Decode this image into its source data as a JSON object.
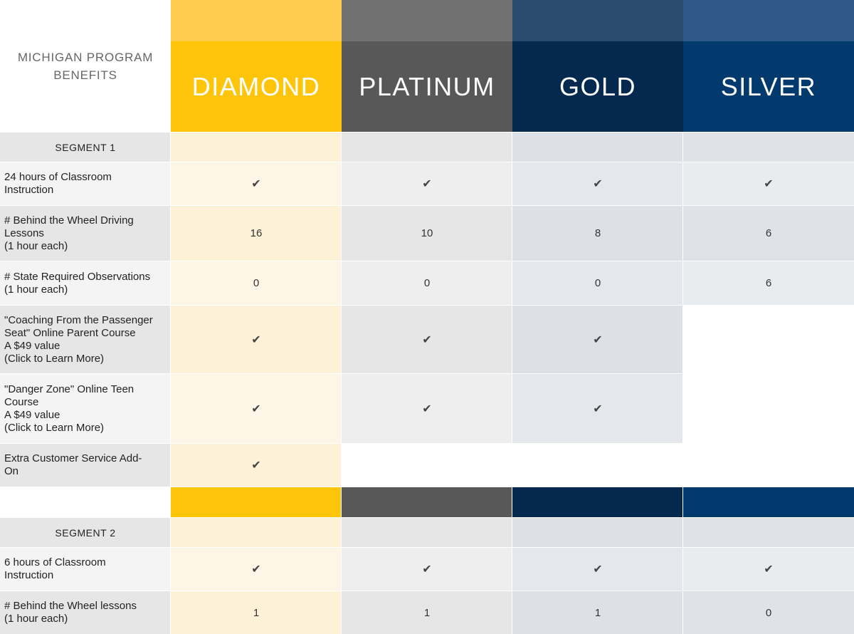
{
  "header": {
    "title": "MICHIGAN PROGRAM\nBENEFITS",
    "tiers": [
      "DIAMOND",
      "PLATINUM",
      "GOLD",
      "SILVER"
    ]
  },
  "colors": {
    "diamond_top": "#fecb4d",
    "diamond": "#fec50b",
    "platinum_top": "#717171",
    "platinum": "#585858",
    "gold_top": "#2a4a6e",
    "gold": "#04284e",
    "silver_top": "#2e5888",
    "silver": "#023a6e"
  },
  "segment1": {
    "label": "SEGMENT 1",
    "rows": [
      {
        "label": "24 hours of Classroom\nInstruction",
        "values": [
          "check",
          "check",
          "check",
          "check"
        ]
      },
      {
        "label": "# Behind the Wheel Driving\nLessons\n(1 hour each)",
        "values": [
          "16",
          "10",
          "8",
          "6"
        ]
      },
      {
        "label": "# State Required Observations\n(1 hour each)",
        "values": [
          "0",
          "0",
          "0",
          "6"
        ]
      },
      {
        "label": "\"Coaching From the Passenger\nSeat\" Online Parent Course\nA $49 value\n(Click to Learn More)",
        "values": [
          "check",
          "check",
          "check",
          ""
        ]
      },
      {
        "label": "\"Danger Zone\" Online Teen\nCourse\nA $49 value\n(Click to Learn More)",
        "values": [
          "check",
          "check",
          "check",
          ""
        ]
      },
      {
        "label": "Extra Customer Service Add-\nOn",
        "values": [
          "check",
          "",
          "",
          ""
        ]
      }
    ]
  },
  "segment2": {
    "label": "SEGMENT 2",
    "rows": [
      {
        "label": "6 hours of Classroom\nInstruction",
        "values": [
          "check",
          "check",
          "check",
          "check"
        ]
      },
      {
        "label": "# Behind the Wheel lessons\n(1 hour each)",
        "values": [
          "1",
          "1",
          "1",
          "0"
        ]
      }
    ]
  },
  "icons": {
    "check": "check-icon"
  },
  "check_glyph": "✔"
}
